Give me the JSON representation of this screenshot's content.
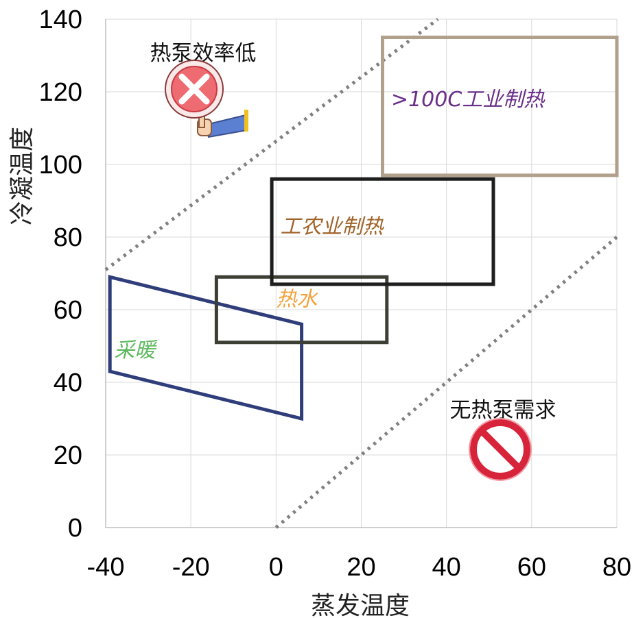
{
  "chart_data": {
    "type": "scatter",
    "xlabel": "蒸发温度",
    "ylabel": "冷凝温度",
    "xlim": [
      -40,
      80
    ],
    "ylim": [
      0,
      140
    ],
    "xticks": [
      -40,
      -20,
      0,
      20,
      40,
      60,
      80
    ],
    "yticks": [
      0,
      20,
      40,
      60,
      80,
      100,
      120,
      140
    ],
    "x_tick_labels": [
      "-40",
      "-20",
      "0",
      "20",
      "40",
      "60",
      "80"
    ],
    "y_tick_labels": [
      "0",
      "20",
      "40",
      "60",
      "80",
      "100",
      "120",
      "140"
    ],
    "grid": true,
    "boundary_lines": [
      {
        "points": [
          [
            -40,
            71
          ],
          [
            38,
            140
          ]
        ],
        "style": "dotted",
        "color": "#808080"
      },
      {
        "points": [
          [
            0,
            0
          ],
          [
            80,
            80
          ]
        ],
        "style": "dotted",
        "color": "#808080"
      }
    ],
    "regions": [
      {
        "label": "采暖",
        "color": "#2f3d7a",
        "label_color": "#5db85d",
        "polygon": [
          [
            -39,
            69
          ],
          [
            6,
            56
          ],
          [
            6,
            30
          ],
          [
            -39,
            43
          ]
        ],
        "label_at": [
          -38,
          47
        ]
      },
      {
        "label": "热水",
        "color": "#3c3f34",
        "label_color": "#f2a23c",
        "polygon": [
          [
            -14,
            69
          ],
          [
            26,
            69
          ],
          [
            26,
            51
          ],
          [
            -14,
            51
          ]
        ],
        "label_at": [
          0,
          61
        ]
      },
      {
        "label": "工农业制热",
        "color": "#1e1e1e",
        "label_color": "#a0632a",
        "polygon": [
          [
            -1,
            96
          ],
          [
            51,
            96
          ],
          [
            51,
            67
          ],
          [
            -1,
            67
          ]
        ],
        "label_at": [
          1,
          81
        ]
      },
      {
        "label": ">100C工业制热",
        "color": "#b0a08c",
        "label_color": "#6a2f8a",
        "polygon": [
          [
            25,
            135
          ],
          [
            80,
            135
          ],
          [
            80,
            97
          ],
          [
            25,
            97
          ]
        ],
        "label_at": [
          27,
          116
        ]
      }
    ],
    "annotations": [
      {
        "text": "热泵效率低",
        "icon": "red-x-prohibition-sign-icon",
        "at": [
          -31,
          125
        ]
      },
      {
        "text": "无热泵需求",
        "icon": "no-entry-circle-icon",
        "at": [
          40,
          31
        ]
      }
    ]
  }
}
